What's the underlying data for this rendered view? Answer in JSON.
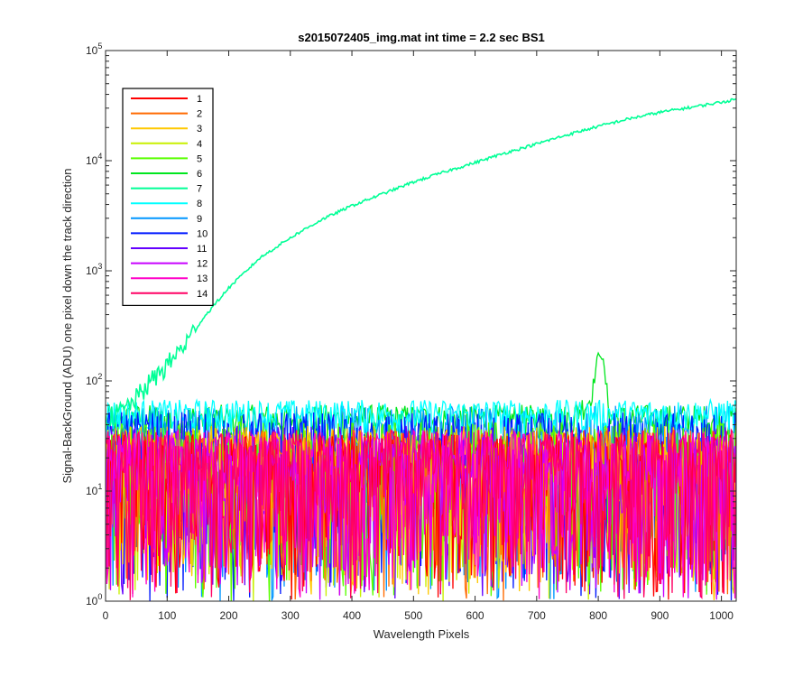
{
  "chart_data": {
    "type": "line",
    "title": "s2015072405_img.mat int time = 2.2 sec   BS1",
    "xlabel": "Wavelength Pixels",
    "ylabel": "Signal-BackGround (ADU) one pixel down the track direction",
    "xlim": [
      0,
      1024
    ],
    "ylim": [
      1,
      100000
    ],
    "yscale": "log",
    "grid": false,
    "legend_position": "top-left",
    "x_ticks": [
      "0",
      "100",
      "200",
      "300",
      "400",
      "500",
      "600",
      "700",
      "800",
      "900",
      "1000"
    ],
    "y_ticks": [
      {
        "base": "10",
        "exp": "0"
      },
      {
        "base": "10",
        "exp": "1"
      },
      {
        "base": "10",
        "exp": "2"
      },
      {
        "base": "10",
        "exp": "3"
      },
      {
        "base": "10",
        "exp": "4"
      },
      {
        "base": "10",
        "exp": "5"
      }
    ],
    "series": [
      {
        "name": "1",
        "color": "#ff0000",
        "level": 18
      },
      {
        "name": "2",
        "color": "#ff6a00",
        "level": 20
      },
      {
        "name": "3",
        "color": "#ffc800",
        "level": 22
      },
      {
        "name": "4",
        "color": "#c8f000",
        "level": 20
      },
      {
        "name": "5",
        "color": "#5aff00",
        "level": 24
      },
      {
        "name": "6",
        "color": "#00e61e",
        "level": 45
      },
      {
        "name": "7",
        "color": "#00ff96",
        "x": [
          0,
          30,
          50,
          70,
          100,
          130,
          160,
          200,
          250,
          300,
          350,
          400,
          450,
          500,
          550,
          600,
          650,
          700,
          750,
          800,
          850,
          900,
          950,
          1000,
          1024
        ],
        "y": [
          45,
          55,
          70,
          95,
          140,
          220,
          380,
          700,
          1300,
          2000,
          2900,
          3900,
          5000,
          6400,
          7900,
          9600,
          11800,
          14200,
          17200,
          20500,
          24000,
          27500,
          30500,
          34000,
          36000
        ]
      },
      {
        "name": "8",
        "color": "#00ffff",
        "level": 50
      },
      {
        "name": "9",
        "color": "#0096ff",
        "level": 35
      },
      {
        "name": "10",
        "color": "#0019ff",
        "level": 30
      },
      {
        "name": "11",
        "color": "#6400ff",
        "level": 22
      },
      {
        "name": "12",
        "color": "#c800ff",
        "level": 18
      },
      {
        "name": "13",
        "color": "#ff00c8",
        "level": 20
      },
      {
        "name": "14",
        "color": "#ff0064",
        "level": 20
      }
    ],
    "annotations": [
      {
        "series": "6",
        "feature": "peak",
        "x": 803,
        "y": 180
      }
    ]
  }
}
